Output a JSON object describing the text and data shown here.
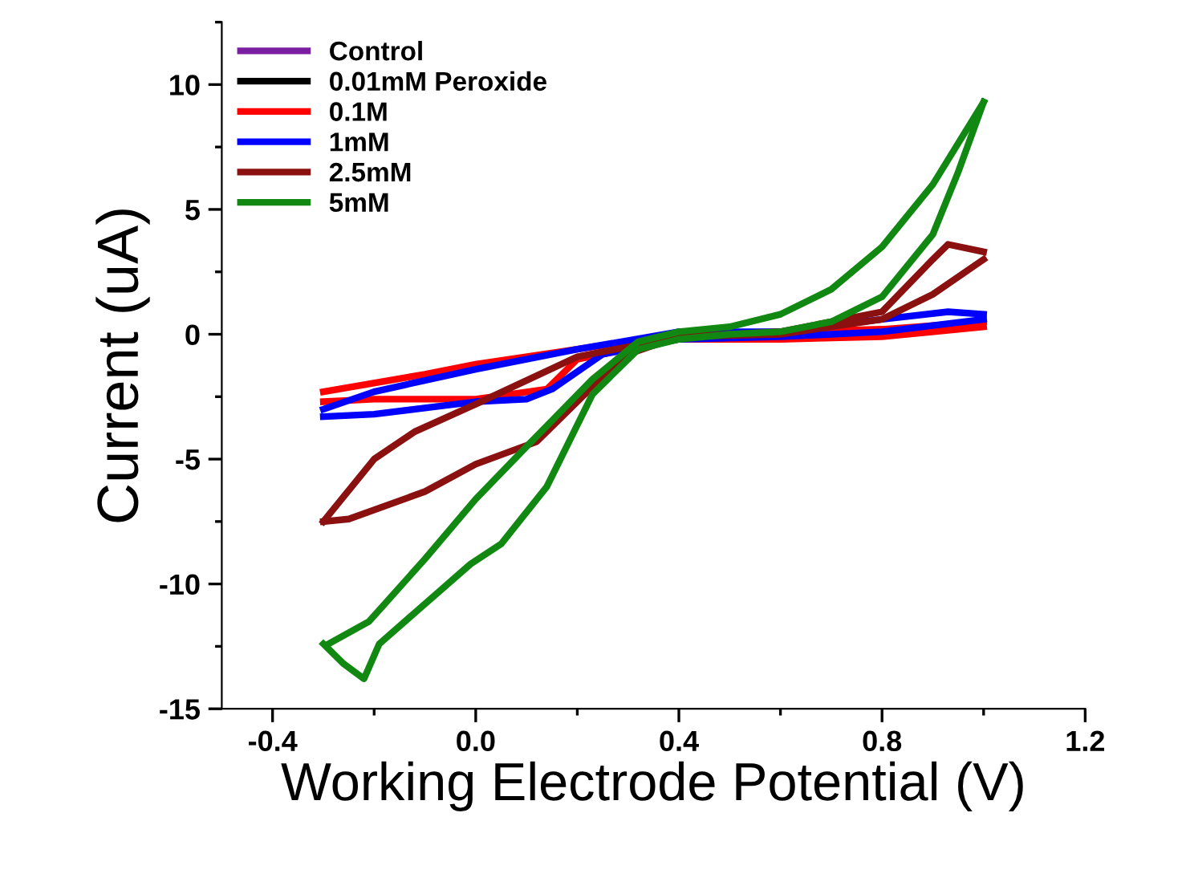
{
  "chart_data": {
    "type": "line",
    "xlabel": "Working Electrode Potential (V)",
    "ylabel": "Current (uA)",
    "xlim": [
      -0.5,
      1.2
    ],
    "xticks": [
      {
        "value": -0.4,
        "label": "-0.4"
      },
      {
        "value": 0.0,
        "label": "0.0"
      },
      {
        "value": 0.4,
        "label": "0.4"
      },
      {
        "value": 0.8,
        "label": "0.8"
      },
      {
        "value": 1.2,
        "label": "1.2"
      }
    ],
    "ylim": [
      -15,
      12.5
    ],
    "yticks": [
      -15,
      -10,
      -5,
      0,
      5,
      10
    ],
    "grid": false,
    "legend": "top left",
    "series": [
      {
        "name": "Control",
        "color": "#7b1fa2"
      },
      {
        "name": "0.01mM Peroxide",
        "color": "#000000"
      },
      {
        "name": "0.1M",
        "color": "#ff0000",
        "x": [
          -0.3,
          -0.1,
          0.0,
          0.2,
          0.4,
          0.6,
          0.8,
          1.0
        ],
        "values": [
          -2.3,
          -1.6,
          -1.2,
          -0.6,
          0.0,
          0.1,
          0.2,
          0.5
        ]
      },
      {
        "color": "#ff0000",
        "x": [
          -0.3,
          -0.2,
          0.0,
          0.14,
          0.2,
          0.4,
          0.6,
          0.8,
          1.0
        ],
        "values": [
          -2.7,
          -2.6,
          -2.6,
          -2.2,
          -1.0,
          -0.2,
          -0.2,
          -0.1,
          0.3
        ]
      },
      {
        "name": "1mM",
        "color": "#0000ff",
        "x": [
          -0.3,
          -0.2,
          0.0,
          0.2,
          0.4,
          0.6,
          0.8,
          0.93,
          1.0
        ],
        "values": [
          -3.0,
          -2.3,
          -1.4,
          -0.6,
          0.1,
          0.1,
          0.6,
          0.9,
          0.8
        ]
      },
      {
        "color": "#0000ff",
        "x": [
          -0.3,
          -0.2,
          0.0,
          0.1,
          0.15,
          0.25,
          0.4,
          0.6,
          0.8,
          1.0
        ],
        "values": [
          -3.3,
          -3.2,
          -2.7,
          -2.6,
          -2.2,
          -0.8,
          -0.2,
          -0.1,
          0.1,
          0.6
        ]
      },
      {
        "name": "2.5mM",
        "color": "#8b1010",
        "x": [
          -0.3,
          -0.25,
          -0.1,
          0.0,
          0.12,
          0.21,
          0.3,
          0.4,
          0.6,
          0.8,
          0.9,
          0.93,
          1.0
        ],
        "values": [
          -7.5,
          -7.4,
          -6.3,
          -5.2,
          -4.3,
          -2.5,
          -0.8,
          -0.1,
          0.1,
          0.9,
          3.0,
          3.6,
          3.3
        ]
      },
      {
        "color": "#8b1010",
        "x": [
          -0.3,
          -0.2,
          -0.12,
          0.0,
          0.2,
          0.4,
          0.6,
          0.8,
          0.9,
          1.0
        ],
        "values": [
          -7.5,
          -5.0,
          -3.9,
          -2.8,
          -0.9,
          -0.1,
          0.0,
          0.6,
          1.6,
          3.0
        ]
      },
      {
        "name": "5mM",
        "color": "#118811",
        "x": [
          -0.29,
          -0.21,
          -0.1,
          0.0,
          0.1,
          0.23,
          0.32,
          0.4,
          0.5,
          0.6,
          0.7,
          0.8,
          0.9,
          1.0
        ],
        "values": [
          -12.4,
          -11.5,
          -9.0,
          -6.6,
          -4.5,
          -1.8,
          -0.3,
          0.1,
          0.3,
          0.8,
          1.8,
          3.5,
          6.0,
          9.3
        ]
      },
      {
        "color": "#118811",
        "x": [
          -0.3,
          -0.26,
          -0.22,
          -0.19,
          -0.01,
          0.05,
          0.14,
          0.23,
          0.32,
          0.4,
          0.5,
          0.6,
          0.7,
          0.8,
          0.9,
          0.95,
          1.0
        ],
        "values": [
          -12.4,
          -13.2,
          -13.8,
          -12.4,
          -9.2,
          -8.4,
          -6.1,
          -2.4,
          -0.6,
          -0.2,
          0.0,
          0.1,
          0.5,
          1.5,
          4.0,
          6.5,
          9.3
        ]
      }
    ]
  }
}
